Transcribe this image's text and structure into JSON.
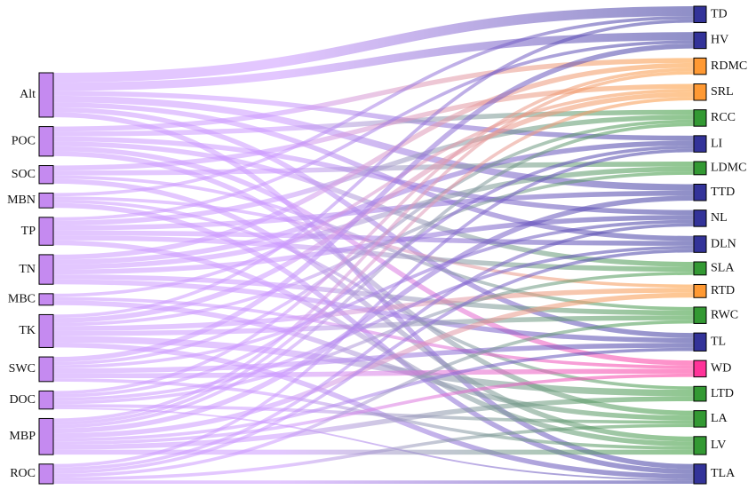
{
  "chart_data": {
    "type": "sankey",
    "left_color": "#c58af0",
    "link_color": "#cc99ff",
    "nodes_left": [
      "Alt",
      "POC",
      "SOC",
      "MBN",
      "TP",
      "TN",
      "MBC",
      "TK",
      "SWC",
      "DOC",
      "MBP",
      "ROC"
    ],
    "nodes_right": [
      {
        "name": "TD",
        "color": "#333399"
      },
      {
        "name": "HV",
        "color": "#333399"
      },
      {
        "name": "RDMC",
        "color": "#ff9933"
      },
      {
        "name": "SRL",
        "color": "#ff9933"
      },
      {
        "name": "RCC",
        "color": "#339933"
      },
      {
        "name": "LI",
        "color": "#333399"
      },
      {
        "name": "LDMC",
        "color": "#339933"
      },
      {
        "name": "TTD",
        "color": "#333399"
      },
      {
        "name": "NL",
        "color": "#333399"
      },
      {
        "name": "DLN",
        "color": "#333399"
      },
      {
        "name": "SLA",
        "color": "#339933"
      },
      {
        "name": "RTD",
        "color": "#ff9933"
      },
      {
        "name": "RWC",
        "color": "#339933"
      },
      {
        "name": "TL",
        "color": "#333399"
      },
      {
        "name": "WD",
        "color": "#ff3399"
      },
      {
        "name": "LTD",
        "color": "#339933"
      },
      {
        "name": "LA",
        "color": "#339933"
      },
      {
        "name": "LV",
        "color": "#339933"
      },
      {
        "name": "TLA",
        "color": "#333399"
      }
    ],
    "links": [
      {
        "source": "Alt",
        "target": "TD",
        "value": 6
      },
      {
        "source": "Alt",
        "target": "HV",
        "value": 5
      },
      {
        "source": "Alt",
        "target": "LI",
        "value": 3
      },
      {
        "source": "Alt",
        "target": "TTD",
        "value": 4
      },
      {
        "source": "Alt",
        "target": "DLN",
        "value": 3
      },
      {
        "source": "Alt",
        "target": "TL",
        "value": 3
      },
      {
        "source": "Alt",
        "target": "TLA",
        "value": 3
      },
      {
        "source": "POC",
        "target": "RDMC",
        "value": 3
      },
      {
        "source": "POC",
        "target": "RCC",
        "value": 3
      },
      {
        "source": "POC",
        "target": "NL",
        "value": 3
      },
      {
        "source": "POC",
        "target": "SLA",
        "value": 3
      },
      {
        "source": "POC",
        "target": "WD",
        "value": 3
      },
      {
        "source": "POC",
        "target": "LA",
        "value": 3
      },
      {
        "source": "SOC",
        "target": "SRL",
        "value": 3
      },
      {
        "source": "SOC",
        "target": "LDMC",
        "value": 3
      },
      {
        "source": "SOC",
        "target": "RWC",
        "value": 2
      },
      {
        "source": "SOC",
        "target": "LV",
        "value": 3
      },
      {
        "source": "MBN",
        "target": "TD",
        "value": 2
      },
      {
        "source": "MBN",
        "target": "RTD",
        "value": 2
      },
      {
        "source": "MBN",
        "target": "LTD",
        "value": 2
      },
      {
        "source": "MBN",
        "target": "TLA",
        "value": 3
      },
      {
        "source": "TP",
        "target": "HV",
        "value": 2
      },
      {
        "source": "TP",
        "target": "RCC",
        "value": 3
      },
      {
        "source": "TP",
        "target": "TTD",
        "value": 3
      },
      {
        "source": "TP",
        "target": "DLN",
        "value": 3
      },
      {
        "source": "TP",
        "target": "SLA",
        "value": 3
      },
      {
        "source": "TP",
        "target": "LV",
        "value": 3
      },
      {
        "source": "TN",
        "target": "RDMC",
        "value": 3
      },
      {
        "source": "TN",
        "target": "LI",
        "value": 3
      },
      {
        "source": "TN",
        "target": "LDMC",
        "value": 3
      },
      {
        "source": "TN",
        "target": "NL",
        "value": 3
      },
      {
        "source": "TN",
        "target": "RWC",
        "value": 3
      },
      {
        "source": "TN",
        "target": "TL",
        "value": 3
      },
      {
        "source": "MBC",
        "target": "SRL",
        "value": 2
      },
      {
        "source": "MBC",
        "target": "WD",
        "value": 2
      },
      {
        "source": "MBC",
        "target": "LA",
        "value": 3
      },
      {
        "source": "TK",
        "target": "TD",
        "value": 2
      },
      {
        "source": "TK",
        "target": "SRL",
        "value": 3
      },
      {
        "source": "TK",
        "target": "LDMC",
        "value": 2
      },
      {
        "source": "TK",
        "target": "RTD",
        "value": 3
      },
      {
        "source": "TK",
        "target": "RWC",
        "value": 3
      },
      {
        "source": "TK",
        "target": "LTD",
        "value": 4
      },
      {
        "source": "TK",
        "target": "TLA",
        "value": 3
      },
      {
        "source": "SWC",
        "target": "HV",
        "value": 3
      },
      {
        "source": "SWC",
        "target": "RCC",
        "value": 2
      },
      {
        "source": "SWC",
        "target": "NL",
        "value": 2
      },
      {
        "source": "SWC",
        "target": "TL",
        "value": 3
      },
      {
        "source": "SWC",
        "target": "WD",
        "value": 3
      },
      {
        "source": "SWC",
        "target": "LV",
        "value": 2
      },
      {
        "source": "DOC",
        "target": "RDMC",
        "value": 2
      },
      {
        "source": "DOC",
        "target": "LI",
        "value": 2
      },
      {
        "source": "DOC",
        "target": "DLN",
        "value": 2
      },
      {
        "source": "DOC",
        "target": "SLA",
        "value": 2
      },
      {
        "source": "DOC",
        "target": "LA",
        "value": 2
      },
      {
        "source": "DOC",
        "target": "TLA",
        "value": 1
      },
      {
        "source": "MBP",
        "target": "RDMC",
        "value": 2
      },
      {
        "source": "MBP",
        "target": "SRL",
        "value": 2
      },
      {
        "source": "MBP",
        "target": "RCC",
        "value": 2
      },
      {
        "source": "MBP",
        "target": "TTD",
        "value": 3
      },
      {
        "source": "MBP",
        "target": "RTD",
        "value": 3
      },
      {
        "source": "MBP",
        "target": "TL",
        "value": 2
      },
      {
        "source": "MBP",
        "target": "WD",
        "value": 2
      },
      {
        "source": "MBP",
        "target": "LTD",
        "value": 3
      },
      {
        "source": "MBP",
        "target": "LV",
        "value": 3
      },
      {
        "source": "ROC",
        "target": "LI",
        "value": 2
      },
      {
        "source": "ROC",
        "target": "NL",
        "value": 2
      },
      {
        "source": "ROC",
        "target": "DLN",
        "value": 2
      },
      {
        "source": "ROC",
        "target": "RWC",
        "value": 2
      },
      {
        "source": "ROC",
        "target": "LA",
        "value": 2
      },
      {
        "source": "ROC",
        "target": "TLA",
        "value": 2
      }
    ]
  }
}
